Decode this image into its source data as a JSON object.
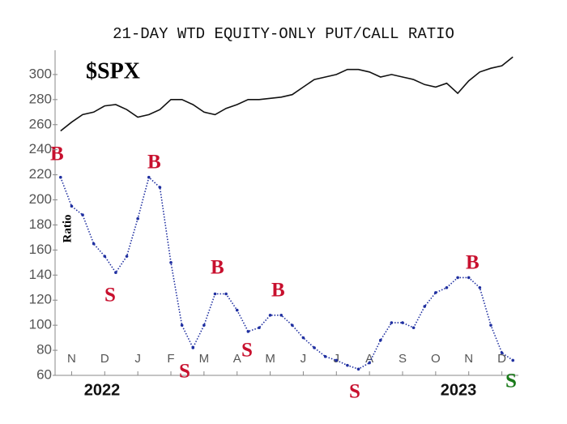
{
  "chart_data": {
    "type": "line",
    "title": "21-DAY WTD EQUITY-ONLY PUT/CALL RATIO",
    "symbol": "$SPX",
    "ylabel": "Ratio",
    "years": [
      "2022",
      "2023"
    ],
    "signals": [
      "B",
      "S",
      "B",
      "S",
      "B",
      "S",
      "B",
      "S",
      "B",
      "S"
    ],
    "categories": [
      null,
      "N",
      null,
      null,
      "D",
      null,
      null,
      "J",
      null,
      null,
      "F",
      null,
      null,
      "M",
      null,
      null,
      "A",
      null,
      null,
      "M",
      null,
      null,
      "J",
      null,
      null,
      "J",
      null,
      null,
      "A",
      null,
      null,
      "S",
      null,
      null,
      "O",
      null,
      null,
      "N",
      null,
      null,
      "D",
      null
    ],
    "series": [
      {
        "name": "$SPX",
        "color": "#111111",
        "values": [
          255,
          262,
          268,
          270,
          275,
          276,
          272,
          266,
          268,
          272,
          280,
          280,
          276,
          270,
          268,
          273,
          276,
          280,
          280,
          281,
          282,
          284,
          290,
          296,
          298,
          300,
          304,
          304,
          302,
          298,
          300,
          298,
          296,
          292,
          290,
          293,
          285,
          295,
          302,
          305,
          307,
          314
        ]
      },
      {
        "name": "Ratio",
        "color": "#1f2fa0",
        "values": [
          218,
          195,
          188,
          165,
          155,
          142,
          155,
          185,
          218,
          210,
          150,
          100,
          82,
          100,
          125,
          125,
          112,
          95,
          98,
          108,
          108,
          100,
          90,
          82,
          75,
          72,
          68,
          65,
          70,
          88,
          102,
          102,
          98,
          115,
          126,
          130,
          138,
          138,
          130,
          100,
          78,
          72
        ]
      }
    ],
    "ylim": [
      60,
      320
    ],
    "yticks": [
      60,
      80,
      100,
      120,
      140,
      160,
      180,
      200,
      220,
      240,
      260,
      280,
      300
    ]
  }
}
